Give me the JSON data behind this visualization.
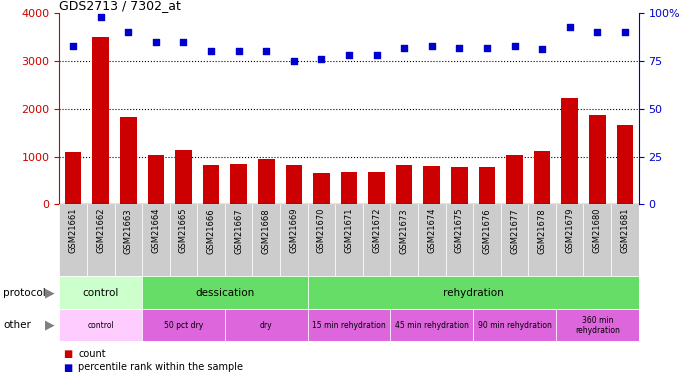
{
  "title": "GDS2713 / 7302_at",
  "samples": [
    "GSM21661",
    "GSM21662",
    "GSM21663",
    "GSM21664",
    "GSM21665",
    "GSM21666",
    "GSM21667",
    "GSM21668",
    "GSM21669",
    "GSM21670",
    "GSM21671",
    "GSM21672",
    "GSM21673",
    "GSM21674",
    "GSM21675",
    "GSM21676",
    "GSM21677",
    "GSM21678",
    "GSM21679",
    "GSM21680",
    "GSM21681"
  ],
  "counts": [
    1100,
    3500,
    1820,
    1040,
    1130,
    830,
    840,
    940,
    820,
    650,
    680,
    680,
    820,
    800,
    790,
    790,
    1030,
    1120,
    2220,
    1870,
    1650
  ],
  "percentiles": [
    83,
    98,
    90,
    85,
    85,
    80,
    80,
    80,
    75,
    76,
    78,
    78,
    82,
    83,
    82,
    82,
    83,
    81,
    93,
    90,
    90
  ],
  "bar_color": "#cc0000",
  "dot_color": "#0000cc",
  "ylim_left": [
    0,
    4000
  ],
  "ylim_right": [
    0,
    100
  ],
  "yticks_left": [
    0,
    1000,
    2000,
    3000,
    4000
  ],
  "yticks_right": [
    0,
    25,
    50,
    75,
    100
  ],
  "protocol_groups": [
    {
      "label": "control",
      "start": 0,
      "end": 3,
      "color": "#ccffcc"
    },
    {
      "label": "dessication",
      "start": 3,
      "end": 9,
      "color": "#66dd66"
    },
    {
      "label": "rehydration",
      "start": 9,
      "end": 21,
      "color": "#66dd66"
    }
  ],
  "other_groups": [
    {
      "label": "control",
      "start": 0,
      "end": 3,
      "color": "#ffccff"
    },
    {
      "label": "50 pct dry",
      "start": 3,
      "end": 6,
      "color": "#dd66dd"
    },
    {
      "label": "dry",
      "start": 6,
      "end": 9,
      "color": "#dd66dd"
    },
    {
      "label": "15 min rehydration",
      "start": 9,
      "end": 12,
      "color": "#dd66dd"
    },
    {
      "label": "45 min rehydration",
      "start": 12,
      "end": 15,
      "color": "#dd66dd"
    },
    {
      "label": "90 min rehydration",
      "start": 15,
      "end": 18,
      "color": "#dd66dd"
    },
    {
      "label": "360 min\nrehydration",
      "start": 18,
      "end": 21,
      "color": "#dd66dd"
    }
  ],
  "xtick_bg": "#cccccc",
  "bg_color": "#ffffff",
  "tick_label_color": "#cc0000",
  "right_tick_color": "#0000cc"
}
